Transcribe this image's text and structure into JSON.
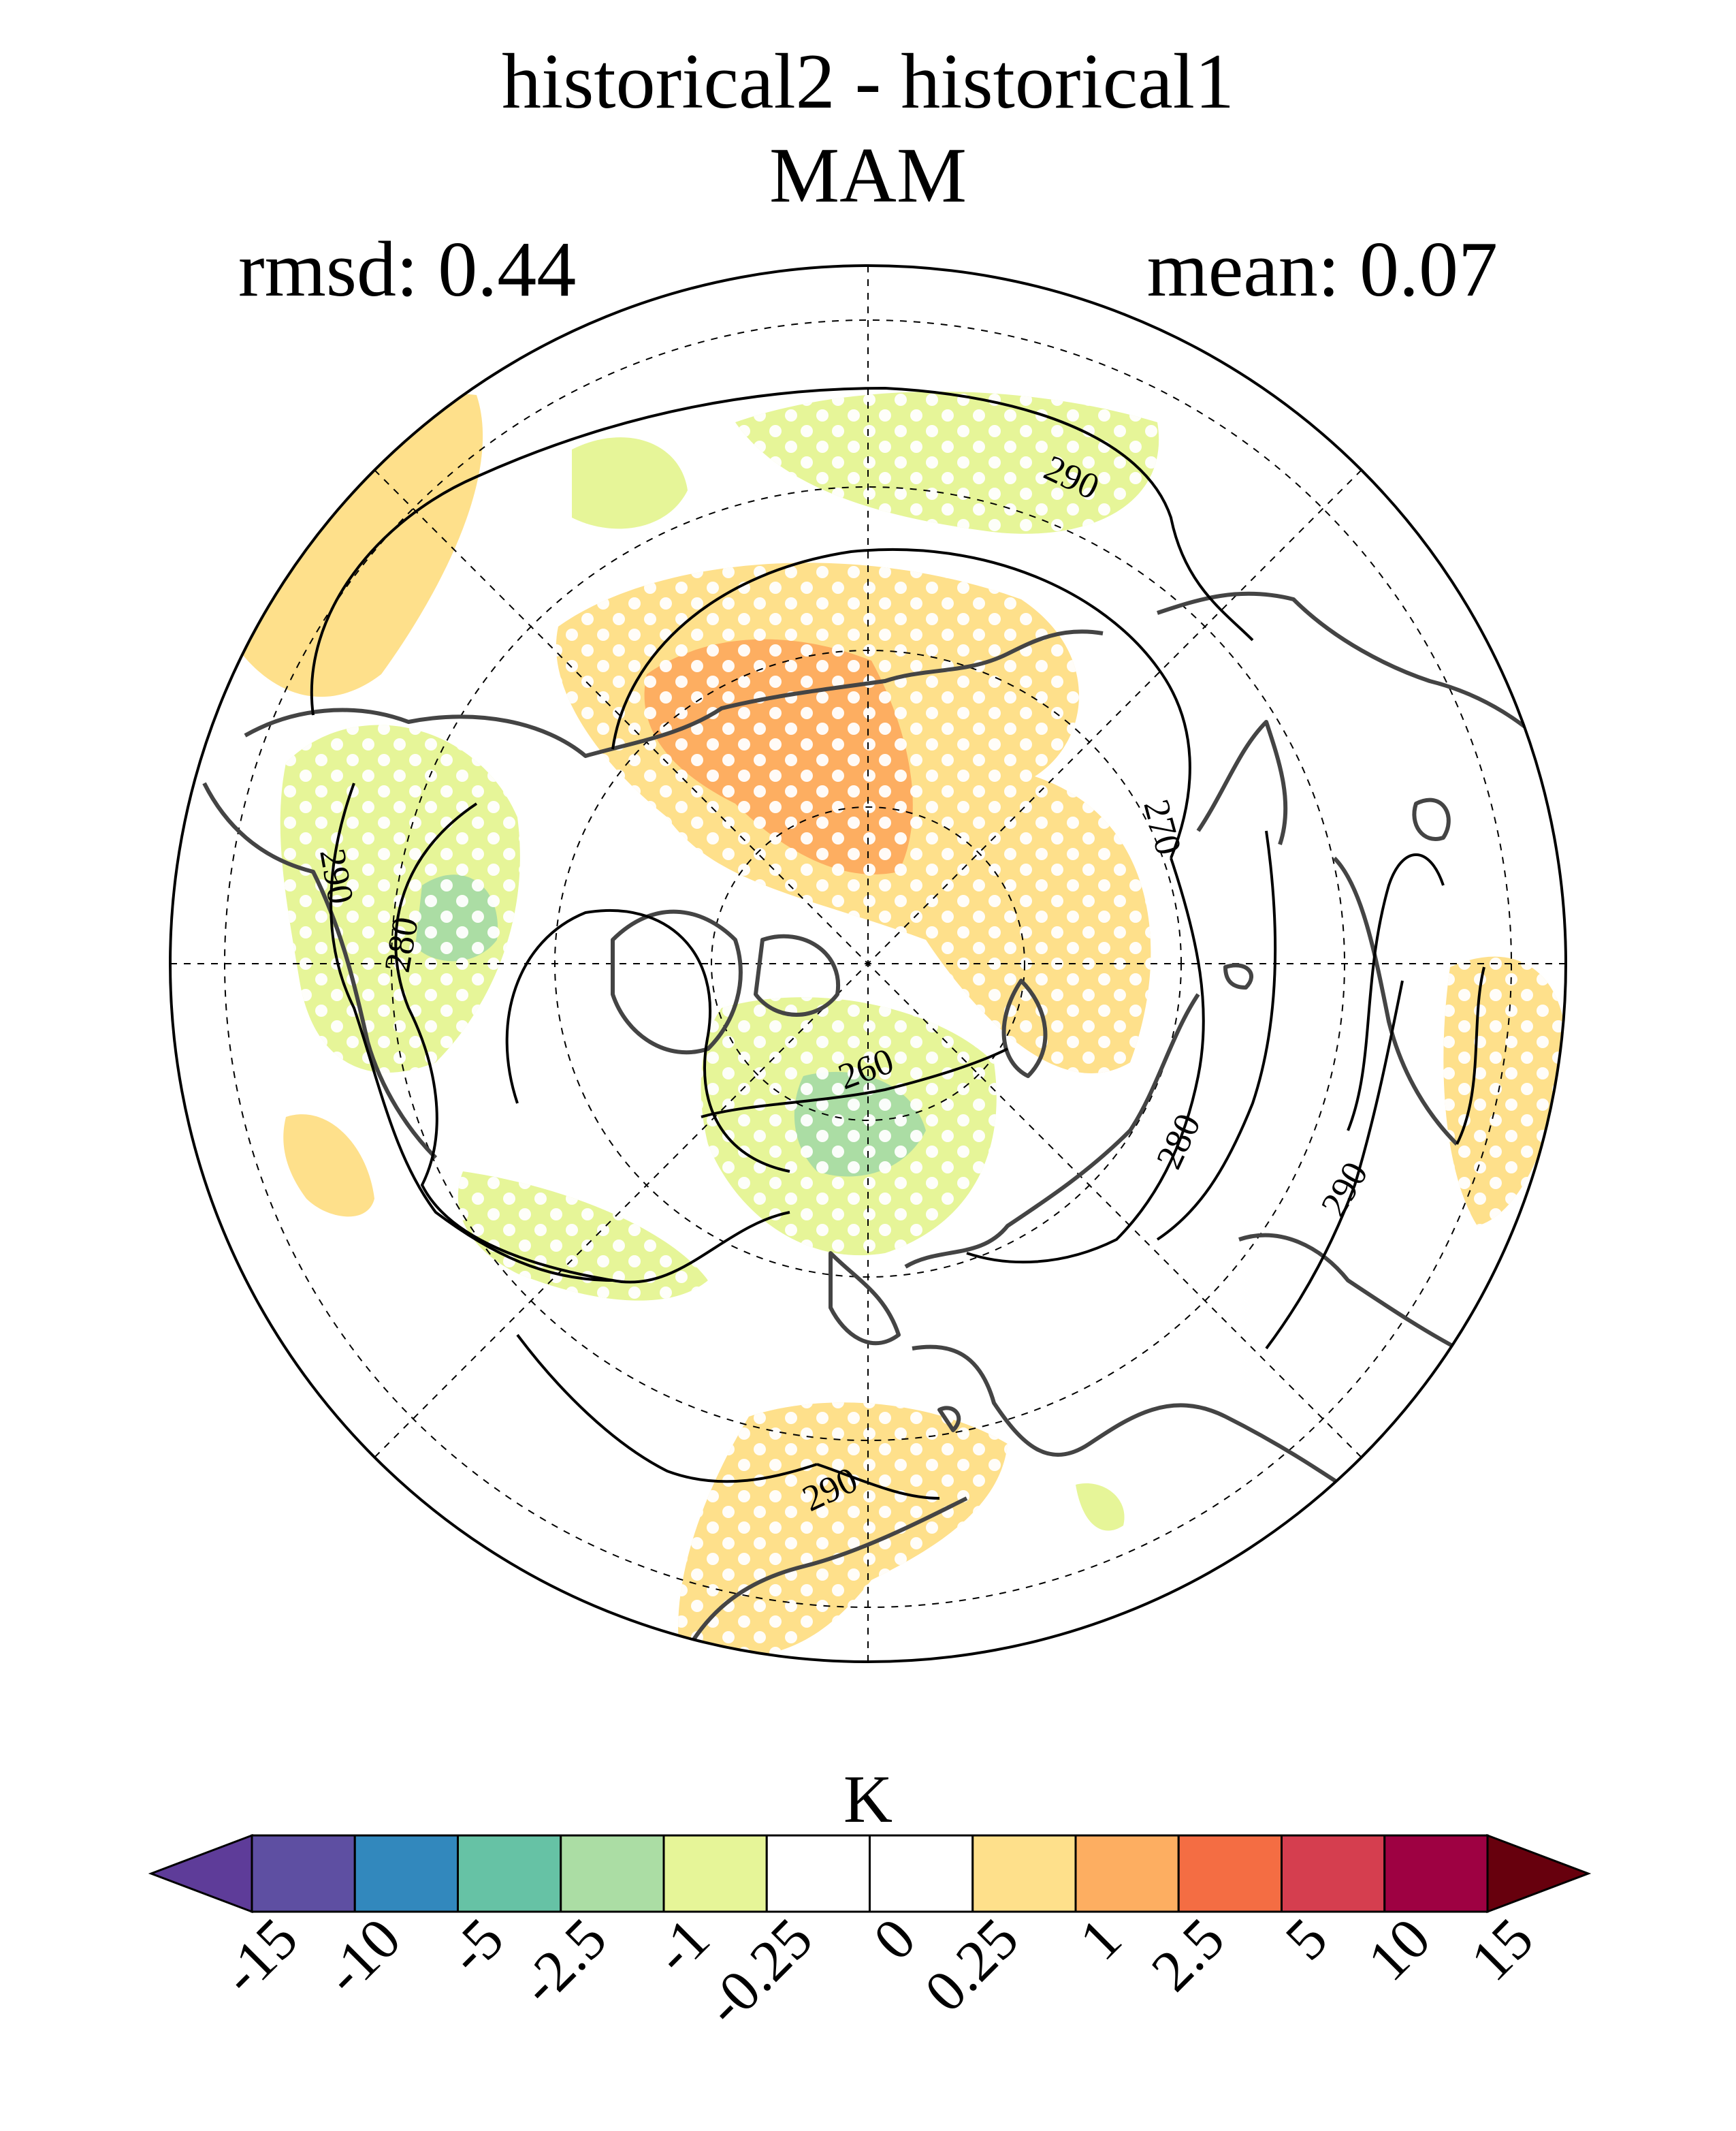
{
  "header": {
    "title": "historical2 - historical1",
    "season": "MAM",
    "rmsd_label": "rmsd: 0.44",
    "mean_label": "mean: 0.07"
  },
  "map": {
    "projection": "north polar stereographic",
    "contour_labels": [
      "290",
      "290",
      "280",
      "270",
      "260",
      "280",
      "290",
      "290"
    ],
    "stippling": "significance dots over shaded regions"
  },
  "colorbar": {
    "unit_label": "K",
    "tick_labels": [
      "-15",
      "-10",
      "-5",
      "-2.5",
      "-1",
      "-0.25",
      "0",
      "0.25",
      "1",
      "2.5",
      "5",
      "10",
      "15"
    ],
    "colors": [
      "#5e3c99",
      "#5e4fa2",
      "#3288bd",
      "#66c2a5",
      "#abdda4",
      "#e6f598",
      "#ffffff",
      "#ffffff",
      "#fee08b",
      "#fdae61",
      "#f46d43",
      "#d53e4f",
      "#9e0142",
      "#67000d"
    ]
  }
}
